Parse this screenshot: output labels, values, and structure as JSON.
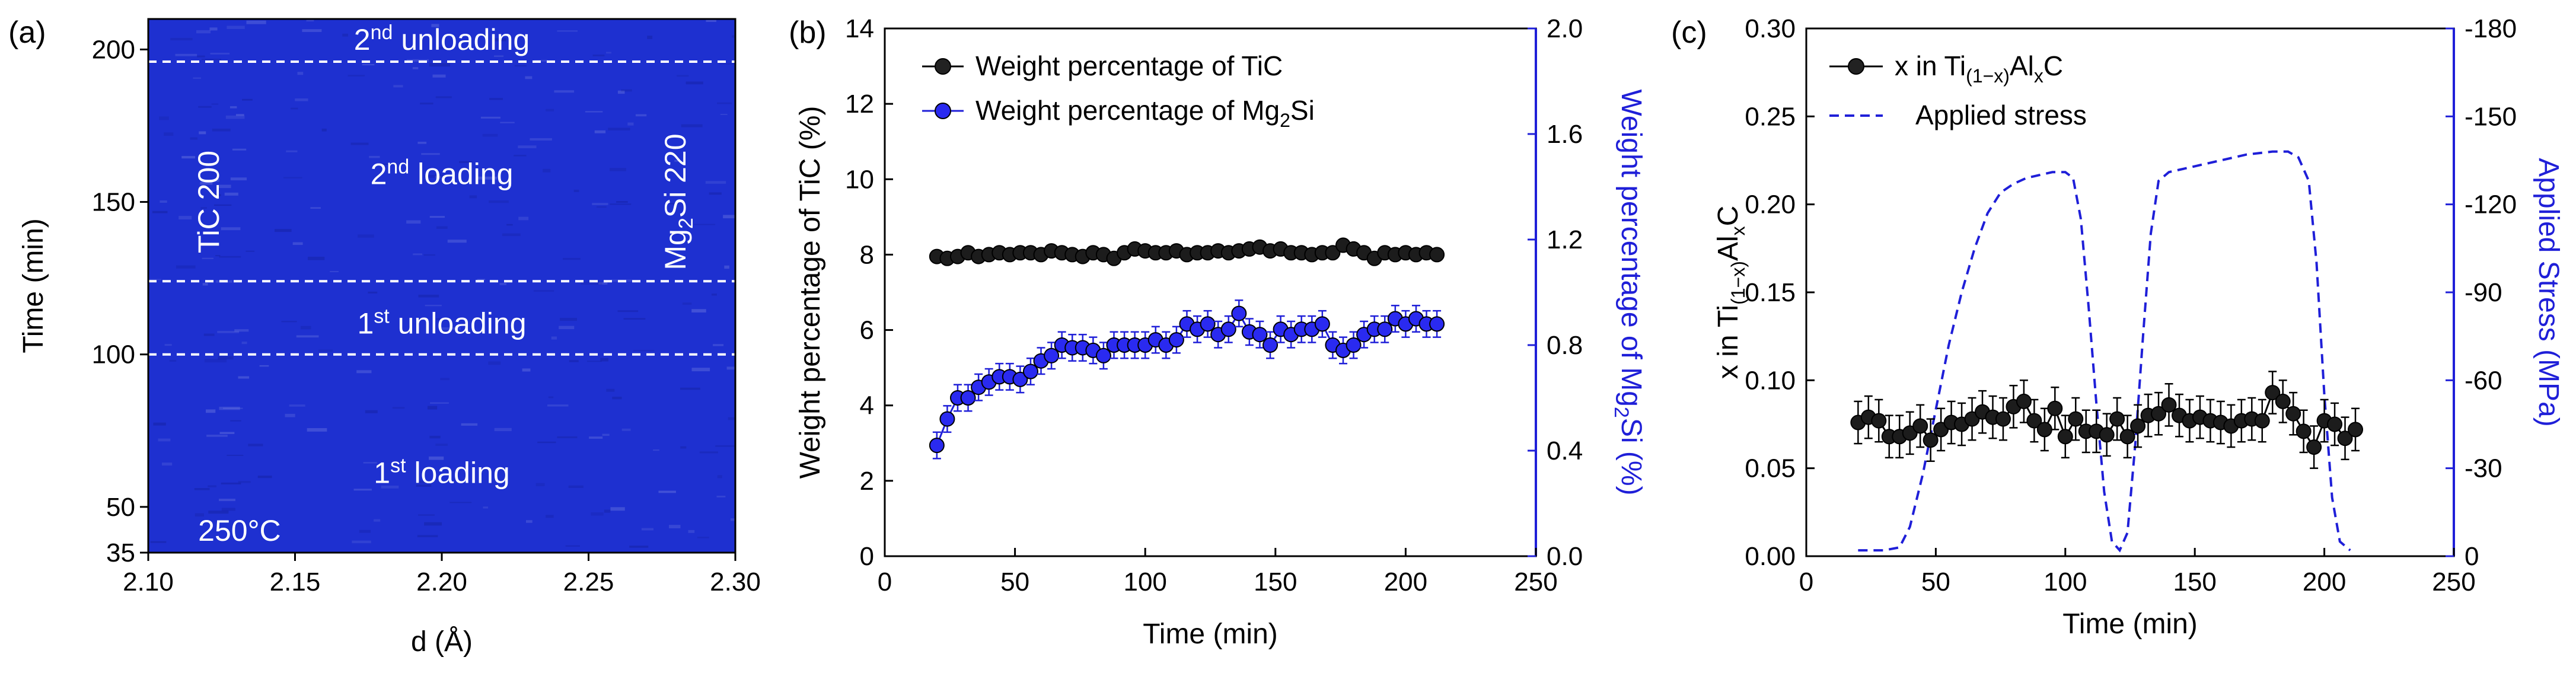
{
  "chart_data": [
    {
      "panel": "(a)",
      "type": "heatmap",
      "xlabel": "d (Å)",
      "ylabel": "Time (min)",
      "xlim": [
        2.1,
        2.3
      ],
      "ylim": [
        35,
        210
      ],
      "xticks": [
        "2.10",
        "2.15",
        "2.20",
        "2.25",
        "2.30"
      ],
      "yticks": [
        "35",
        "50",
        "100",
        "150",
        "200"
      ],
      "xtick_values": [
        2.1,
        2.15,
        2.2,
        2.25,
        2.3
      ],
      "ytick_values": [
        35,
        50,
        100,
        150,
        200
      ],
      "peaks": [
        {
          "label_main": "TiC 200",
          "d": 2.16
        },
        {
          "label_main": "Mg",
          "label_sub": "2",
          "label_rest": "Si 220",
          "d": 2.255
        }
      ],
      "dashed_lines_time": [
        196,
        124,
        100
      ],
      "annotations": [
        {
          "main": "2",
          "sup": "nd",
          "rest": " unloading",
          "time": 203,
          "d": 2.2
        },
        {
          "main": "2",
          "sup": "nd",
          "rest": " loading",
          "time": 159,
          "d": 2.2
        },
        {
          "main": "1",
          "sup": "st",
          "rest": " unloading",
          "time": 110,
          "d": 2.2
        },
        {
          "main": "1",
          "sup": "st",
          "rest": " loading",
          "time": 61,
          "d": 2.2
        },
        {
          "main": "250°C",
          "time": 42,
          "d": 2.117
        }
      ]
    },
    {
      "panel": "(b)",
      "type": "scatter",
      "xlabel": "Time (min)",
      "ylabel_left": "Weight percentage of TiC (%)",
      "ylabel_right_main": "Weight percentage of Mg",
      "ylabel_right_sub": "2",
      "ylabel_right_rest": "Si (%)",
      "xlim": [
        0,
        250
      ],
      "ylim_left": [
        0,
        14
      ],
      "ylim_right": [
        0.0,
        2.0
      ],
      "xticks": [
        "0",
        "50",
        "100",
        "150",
        "200",
        "250"
      ],
      "yticks_left": [
        "0",
        "2",
        "4",
        "6",
        "8",
        "10",
        "12",
        "14"
      ],
      "yticks_right": [
        "0.0",
        "0.4",
        "0.8",
        "1.2",
        "1.6",
        "2.0"
      ],
      "x": [
        20,
        24,
        28,
        32,
        36,
        40,
        44,
        48,
        52,
        56,
        60,
        64,
        68,
        72,
        76,
        80,
        84,
        88,
        92,
        96,
        100,
        104,
        108,
        112,
        116,
        120,
        124,
        128,
        132,
        136,
        140,
        144,
        148,
        152,
        156,
        160,
        164,
        168,
        172,
        176,
        180,
        184,
        188,
        192,
        196,
        200,
        204,
        208,
        212
      ],
      "series": [
        {
          "name": "Weight percentage of TiC",
          "legend_main": "Weight percentage of TiC",
          "axis": "left",
          "color": "#000000",
          "values": [
            7.95,
            7.9,
            7.95,
            8.05,
            7.95,
            8.0,
            8.05,
            8.0,
            8.05,
            8.05,
            8.0,
            8.1,
            8.05,
            8.0,
            7.95,
            8.05,
            8.0,
            7.9,
            8.05,
            8.15,
            8.1,
            8.05,
            8.05,
            8.1,
            8.0,
            8.05,
            8.05,
            8.1,
            8.05,
            8.1,
            8.15,
            8.2,
            8.1,
            8.15,
            8.05,
            8.05,
            8.0,
            8.05,
            8.05,
            8.25,
            8.15,
            8.05,
            7.9,
            8.05,
            8.0,
            8.05,
            8.0,
            8.05,
            8.0
          ]
        },
        {
          "name": "Weight percentage of Mg2Si",
          "legend_main": "Weight percentage of Mg",
          "legend_sub": "2",
          "legend_rest": "Si",
          "axis": "right",
          "color": "#1f1fd8",
          "values": [
            0.42,
            0.52,
            0.6,
            0.6,
            0.64,
            0.66,
            0.68,
            0.68,
            0.67,
            0.7,
            0.74,
            0.76,
            0.8,
            0.79,
            0.79,
            0.78,
            0.76,
            0.8,
            0.8,
            0.8,
            0.8,
            0.82,
            0.8,
            0.82,
            0.88,
            0.86,
            0.88,
            0.84,
            0.86,
            0.92,
            0.85,
            0.84,
            0.8,
            0.86,
            0.84,
            0.86,
            0.86,
            0.88,
            0.8,
            0.78,
            0.8,
            0.84,
            0.86,
            0.86,
            0.9,
            0.88,
            0.9,
            0.88,
            0.88
          ],
          "error": 0.05
        }
      ]
    },
    {
      "panel": "(c)",
      "type": "line",
      "xlabel": "Time (min)",
      "ylabel_left_main": "x in Ti",
      "ylabel_left_sub1": "(1−x)",
      "ylabel_left_mid": "Al",
      "ylabel_left_sub2": "x",
      "ylabel_left_rest": "C",
      "ylabel_right": "Applied Stress (MPa)",
      "xlim": [
        0,
        250
      ],
      "ylim_left": [
        0.0,
        0.3
      ],
      "ylim_right": [
        0,
        -180
      ],
      "xticks": [
        "0",
        "50",
        "100",
        "150",
        "200",
        "250"
      ],
      "yticks_left": [
        "0.00",
        "0.05",
        "0.10",
        "0.15",
        "0.20",
        "0.25",
        "0.30"
      ],
      "yticks_right": [
        "0",
        "-30",
        "-60",
        "-90",
        "-120",
        "-150",
        "-180"
      ],
      "series": [
        {
          "name": "x in Ti(1-x)AlxC",
          "legend_main": "x in Ti",
          "legend_sub1": "(1−x)",
          "legend_mid": "Al",
          "legend_sub2": "x",
          "legend_rest": "C",
          "axis": "left",
          "color": "#000000",
          "x": [
            20,
            24,
            28,
            32,
            36,
            40,
            44,
            48,
            52,
            56,
            60,
            64,
            68,
            72,
            76,
            80,
            84,
            88,
            92,
            96,
            100,
            104,
            108,
            112,
            116,
            120,
            124,
            128,
            132,
            136,
            140,
            144,
            148,
            152,
            156,
            160,
            164,
            168,
            172,
            176,
            180,
            184,
            188,
            192,
            196,
            200,
            204,
            208,
            212
          ],
          "values": [
            0.076,
            0.079,
            0.077,
            0.068,
            0.068,
            0.07,
            0.074,
            0.066,
            0.072,
            0.076,
            0.075,
            0.078,
            0.082,
            0.079,
            0.078,
            0.085,
            0.088,
            0.077,
            0.072,
            0.084,
            0.068,
            0.078,
            0.071,
            0.071,
            0.069,
            0.078,
            0.068,
            0.074,
            0.08,
            0.081,
            0.086,
            0.08,
            0.077,
            0.079,
            0.077,
            0.076,
            0.074,
            0.077,
            0.078,
            0.077,
            0.093,
            0.088,
            0.081,
            0.071,
            0.062,
            0.077,
            0.075,
            0.067,
            0.072
          ],
          "error": 0.012
        },
        {
          "name": "Applied stress",
          "legend_main": "Applied stress",
          "axis": "right",
          "color": "#1f1fd8",
          "style": "dashed",
          "x": [
            20,
            30,
            36,
            40,
            45,
            50,
            55,
            60,
            65,
            70,
            75,
            80,
            85,
            90,
            95,
            100,
            103,
            106,
            109,
            112,
            115,
            118,
            121,
            124,
            127,
            130,
            133,
            136,
            140,
            150,
            160,
            170,
            180,
            186,
            190,
            194,
            197,
            200,
            203,
            206,
            210
          ],
          "values": [
            -2,
            -2,
            -3,
            -10,
            -28,
            -50,
            -72,
            -90,
            -105,
            -117,
            -124,
            -127,
            -129,
            -130,
            -131,
            -131,
            -129,
            -115,
            -85,
            -52,
            -22,
            -5,
            -2,
            -8,
            -38,
            -75,
            -110,
            -128,
            -131,
            -133,
            -135,
            -137,
            -138,
            -138,
            -136,
            -128,
            -100,
            -55,
            -20,
            -5,
            -2
          ]
        }
      ]
    }
  ]
}
